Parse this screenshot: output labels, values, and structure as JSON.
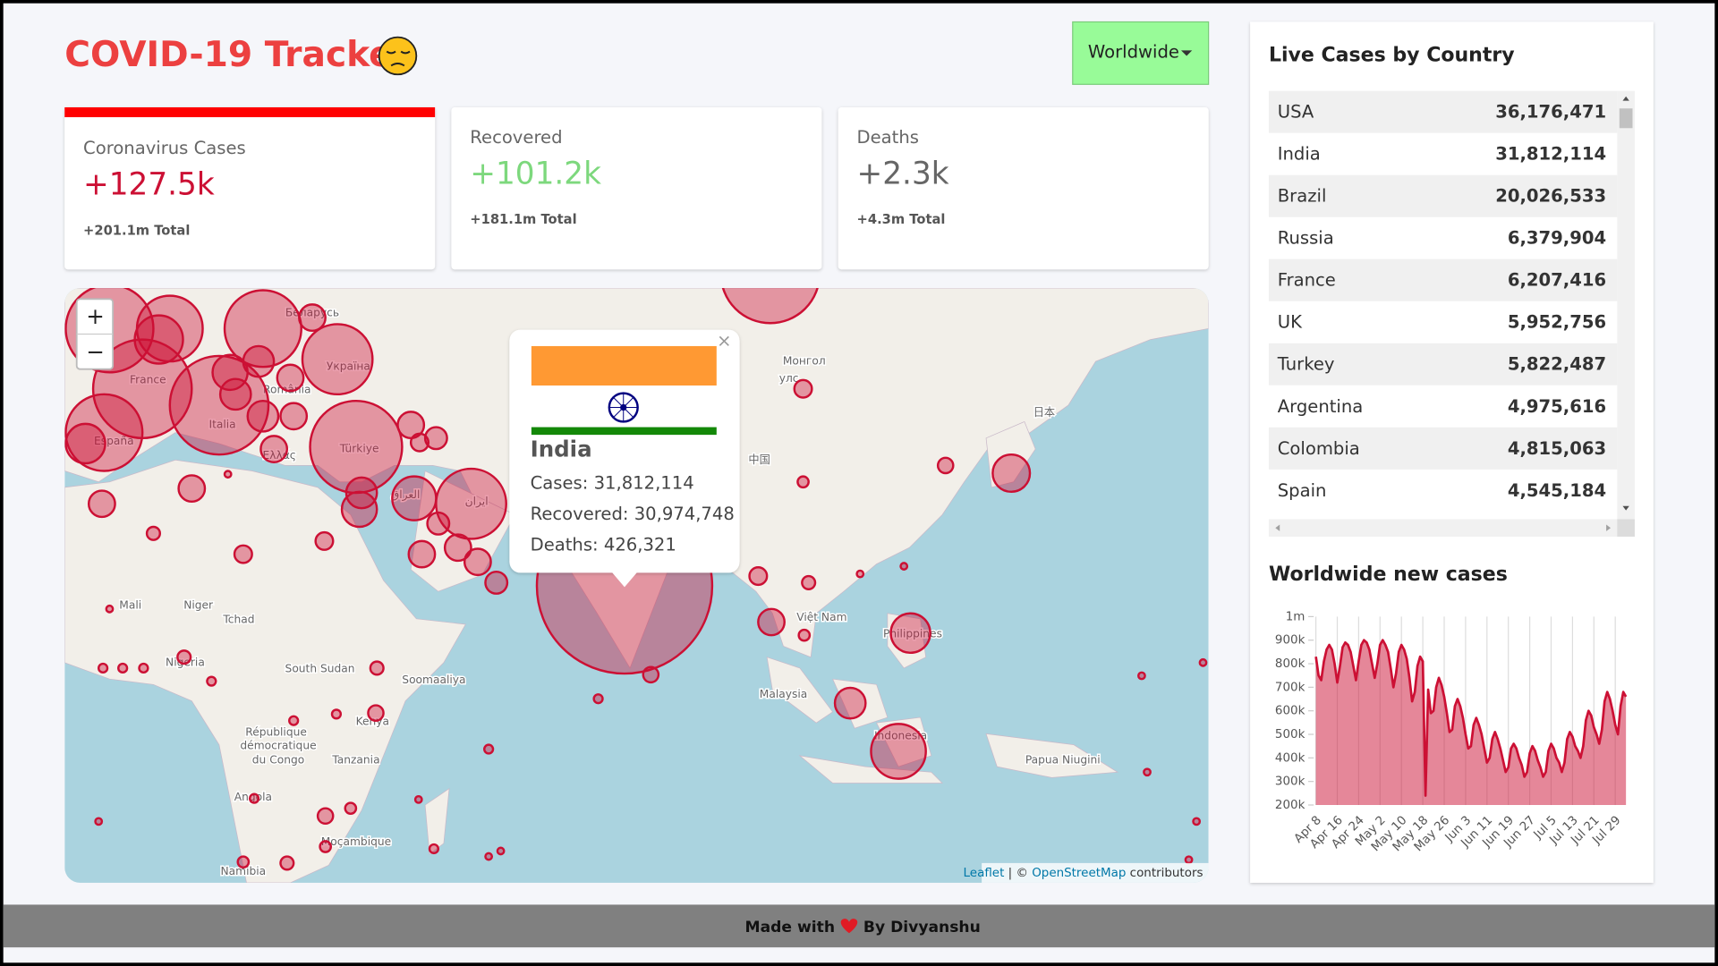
{
  "header": {
    "title": "COVID-19 Tracker",
    "dropdown": "Worldwide"
  },
  "cards": [
    {
      "title": "Coronavirus Cases",
      "value": "+127.5k",
      "total": "+201.1m Total"
    },
    {
      "title": "Recovered",
      "value": "+101.2k",
      "total": "+181.1m Total"
    },
    {
      "title": "Deaths",
      "value": "+2.3k",
      "total": "+4.3m Total"
    }
  ],
  "map": {
    "labels": [
      "France",
      "España",
      "Italia",
      "Türkiye",
      "Україна",
      "Беларусь",
      "România",
      "Ελλάς",
      "Mali",
      "Niger",
      "Tchad",
      "Nigeria",
      "South Sudan",
      "Soomaaliya",
      "Kenya",
      "Tanzania",
      "République",
      "démocratique",
      "du Congo",
      "Angola",
      "Namibia",
      "Moçambique",
      "Việt Nam",
      "Philippines",
      "Malaysia",
      "Indonesia",
      "Papua Niugini",
      "中国",
      "日本",
      "Монгол",
      "улс",
      "ایران",
      "العراق"
    ],
    "zoom_in": "+",
    "zoom_out": "−",
    "attribution": {
      "leaflet": "Leaflet",
      "separator": "| ©",
      "osm": "OpenStreetMap",
      "contributors": "contributors"
    },
    "popup": {
      "country": "India",
      "cases": "Cases: 31,812,114",
      "recovered": "Recovered: 30,974,748",
      "deaths": "Deaths: 426,321",
      "close": "×"
    }
  },
  "table": {
    "title": "Live Cases by Country",
    "rows": [
      [
        "USA",
        "36,176,471"
      ],
      [
        "India",
        "31,812,114"
      ],
      [
        "Brazil",
        "20,026,533"
      ],
      [
        "Russia",
        "6,379,904"
      ],
      [
        "France",
        "6,207,416"
      ],
      [
        "UK",
        "5,952,756"
      ],
      [
        "Turkey",
        "5,822,487"
      ],
      [
        "Argentina",
        "4,975,616"
      ],
      [
        "Colombia",
        "4,815,063"
      ],
      [
        "Spain",
        "4,545,184"
      ]
    ]
  },
  "chart_data": {
    "type": "area",
    "title": "Worldwide new cases",
    "color": "#cc1034",
    "categories": [
      "Apr 8",
      null,
      null,
      null,
      null,
      null,
      null,
      null,
      "Apr 16",
      null,
      null,
      null,
      null,
      null,
      null,
      null,
      "Apr 24",
      null,
      null,
      null,
      null,
      null,
      null,
      null,
      "May 2",
      null,
      null,
      null,
      null,
      null,
      null,
      null,
      "May 10",
      null,
      null,
      null,
      null,
      null,
      null,
      null,
      "May 18",
      null,
      null,
      null,
      null,
      null,
      null,
      null,
      "May 26",
      null,
      null,
      null,
      null,
      null,
      null,
      null,
      "Jun 3",
      null,
      null,
      null,
      null,
      null,
      null,
      null,
      "Jun 11",
      null,
      null,
      null,
      null,
      null,
      null,
      null,
      "Jun 19",
      null,
      null,
      null,
      null,
      null,
      null,
      null,
      "Jun 27",
      null,
      null,
      null,
      null,
      null,
      null,
      null,
      "Jul 5",
      null,
      null,
      null,
      null,
      null,
      null,
      null,
      "Jul 13",
      null,
      null,
      null,
      null,
      null,
      null,
      null,
      "Jul 21",
      null,
      null,
      null,
      null,
      null,
      null,
      null,
      "Jul 29",
      null,
      null,
      null,
      null
    ],
    "values": [
      830000,
      750000,
      730000,
      810000,
      860000,
      880000,
      860000,
      800000,
      720000,
      790000,
      870000,
      890000,
      880000,
      850000,
      790000,
      730000,
      810000,
      880000,
      900000,
      890000,
      860000,
      800000,
      740000,
      800000,
      880000,
      900000,
      880000,
      850000,
      780000,
      700000,
      760000,
      850000,
      880000,
      860000,
      820000,
      740000,
      640000,
      680000,
      790000,
      830000,
      810000,
      240000,
      690000,
      590000,
      600000,
      700000,
      740000,
      710000,
      660000,
      590000,
      510000,
      520000,
      620000,
      650000,
      620000,
      570000,
      500000,
      440000,
      450000,
      540000,
      570000,
      540000,
      500000,
      440000,
      380000,
      400000,
      480000,
      510000,
      480000,
      440000,
      390000,
      340000,
      360000,
      440000,
      460000,
      440000,
      400000,
      370000,
      320000,
      340000,
      420000,
      450000,
      430000,
      390000,
      360000,
      320000,
      340000,
      430000,
      460000,
      440000,
      400000,
      380000,
      340000,
      380000,
      480000,
      510000,
      490000,
      450000,
      430000,
      400000,
      450000,
      560000,
      600000,
      580000,
      530000,
      500000,
      460000,
      520000,
      640000,
      680000,
      650000,
      600000,
      540000,
      500000,
      620000,
      680000,
      660000
    ],
    "ylim": [
      200000,
      1000000
    ],
    "yticks": [
      {
        "value": 1000000,
        "label": "1m"
      },
      {
        "value": 900000,
        "label": "900k"
      },
      {
        "value": 800000,
        "label": "800k"
      },
      {
        "value": 700000,
        "label": "700k"
      },
      {
        "value": 600000,
        "label": "600k"
      },
      {
        "value": 500000,
        "label": "500k"
      },
      {
        "value": 400000,
        "label": "400k"
      },
      {
        "value": 300000,
        "label": "300k"
      },
      {
        "value": 200000,
        "label": "200k"
      }
    ],
    "grid": true
  },
  "footer": {
    "made_with": "Made with",
    "by": "By Divyanshu"
  }
}
